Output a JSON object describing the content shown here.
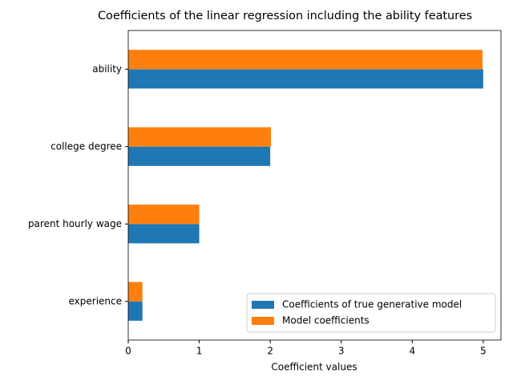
{
  "chart_data": {
    "type": "barh",
    "title": "Coefficients of the linear regression including the ability features",
    "x_label": "Coefficient values",
    "categories": [
      "ability",
      "college degree",
      "parent hourly wage",
      "experience"
    ],
    "series": [
      {
        "name": "Coefficients of true generative model",
        "color": "#1f77b4",
        "values": [
          5,
          2,
          1,
          0.2
        ]
      },
      {
        "name": "Model coefficients",
        "color": "#ff7f0e",
        "values": [
          4.99,
          2.01,
          1,
          0.2
        ]
      }
    ],
    "xlim": [
      0,
      5.25
    ],
    "xticks": [
      0,
      1,
      2,
      3,
      4,
      5
    ],
    "legend": "lower right",
    "grid": false
  }
}
